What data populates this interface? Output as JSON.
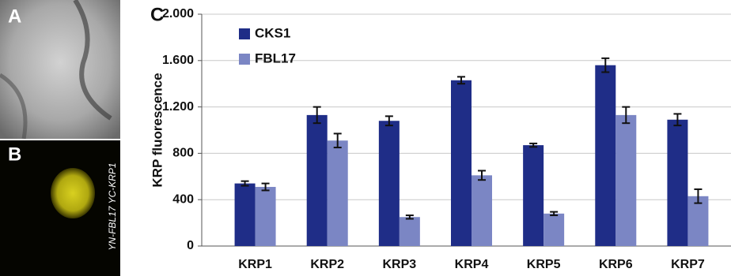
{
  "panels": {
    "a": "A",
    "b": "B",
    "b_caption": "YN-FBL17 YC-KRP1"
  },
  "chart_data": {
    "type": "bar",
    "panel_label": "C",
    "y_label": "KRP fluorescence",
    "categories": [
      "KRP1",
      "KRP2",
      "KRP3",
      "KRP4",
      "KRP5",
      "KRP6",
      "KRP7"
    ],
    "series": [
      {
        "name": "CKS1",
        "color": "#1f2d87",
        "values": [
          540,
          1130,
          1080,
          1430,
          870,
          1560,
          1090
        ],
        "errors": [
          20,
          70,
          40,
          30,
          15,
          60,
          50
        ]
      },
      {
        "name": "FBL17",
        "color": "#7b86c4",
        "values": [
          510,
          910,
          250,
          610,
          280,
          1130,
          430
        ],
        "errors": [
          30,
          60,
          15,
          40,
          15,
          70,
          60
        ]
      }
    ],
    "ylim": [
      0,
      2000
    ],
    "yticks": [
      0,
      400,
      800,
      {
        "value": 1200,
        "label": "1.200"
      },
      {
        "value": 1600,
        "label": "1.600"
      },
      {
        "value": 2000,
        "label": "2.000"
      }
    ],
    "grid": true,
    "legend": "top-left"
  }
}
